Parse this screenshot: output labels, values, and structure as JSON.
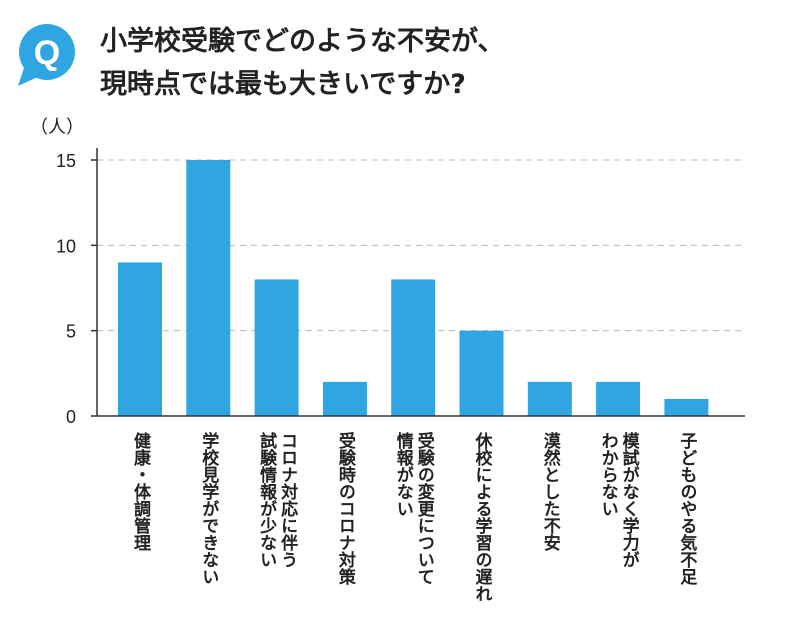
{
  "title": {
    "line1": "小学校受験でどのような不安が、",
    "line2": "現時点では最も大きいですか?",
    "badge": "Q"
  },
  "colors": {
    "bar": "#2fa6e2",
    "badge": "#2fa6e2",
    "grid": "#b8b8b8",
    "axis": "#333333"
  },
  "chart_data": {
    "type": "bar",
    "ylabel": "（人）",
    "ylim": [
      0,
      15
    ],
    "yticks": [
      0,
      5,
      10,
      15
    ],
    "grid": "dashed horizontal",
    "categories": [
      [
        "健康・体調管理"
      ],
      [
        "学校見学ができない"
      ],
      [
        "コロナ対応に伴う",
        "試験情報が少ない"
      ],
      [
        "受験時のコロナ対策"
      ],
      [
        "受験の変更について",
        "情報がない"
      ],
      [
        "休校による学習の遅れ"
      ],
      [
        "漠然とした不安"
      ],
      [
        "模試がなく学力が",
        "わからない"
      ],
      [
        "子どものやる気不足"
      ]
    ],
    "values": [
      9,
      15,
      8,
      2,
      8,
      5,
      2,
      2,
      1
    ]
  }
}
